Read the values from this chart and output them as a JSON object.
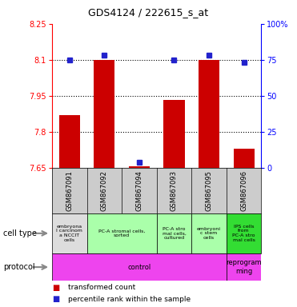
{
  "title": "GDS4124 / 222615_s_at",
  "samples": [
    "GSM867091",
    "GSM867092",
    "GSM867094",
    "GSM867093",
    "GSM867095",
    "GSM867096"
  ],
  "transformed_counts": [
    7.87,
    8.1,
    7.657,
    7.933,
    8.1,
    7.73
  ],
  "percentile_ranks": [
    75,
    78,
    4,
    75,
    78,
    73
  ],
  "ylim_left": [
    7.65,
    8.25
  ],
  "ylim_right": [
    0,
    100
  ],
  "yticks_left": [
    7.65,
    7.8,
    7.95,
    8.1,
    8.25
  ],
  "yticks_right": [
    0,
    25,
    50,
    75,
    100
  ],
  "ytick_labels_left": [
    "7.65",
    "7.8",
    "7.95",
    "8.1",
    "8.25"
  ],
  "ytick_labels_right": [
    "0",
    "25",
    "50",
    "75",
    "100%"
  ],
  "hlines": [
    7.8,
    7.95,
    8.1
  ],
  "bar_color": "#cc0000",
  "dot_color": "#2222cc",
  "sample_bg_color": "#cccccc",
  "cell_types": [
    {
      "label": "embryona\nl carcinom\na NCCIT\ncells",
      "span": [
        0,
        1
      ],
      "color": "#dddddd"
    },
    {
      "label": "PC-A stromal cells,\nsorted",
      "span": [
        1,
        3
      ],
      "color": "#aaffaa"
    },
    {
      "label": "PC-A stro\nmal cells,\ncultured",
      "span": [
        3,
        4
      ],
      "color": "#aaffaa"
    },
    {
      "label": "embryoni\nc stem\ncells",
      "span": [
        4,
        5
      ],
      "color": "#aaffaa"
    },
    {
      "label": "IPS cells\nfrom\nPC-A stro\nmal cells",
      "span": [
        5,
        6
      ],
      "color": "#33dd33"
    }
  ],
  "protocols": [
    {
      "label": "control",
      "span": [
        0,
        5
      ],
      "color": "#ee44ee"
    },
    {
      "label": "reprogram\nming",
      "span": [
        5,
        6
      ],
      "color": "#ee44ee"
    }
  ],
  "legend_red_label": "transformed count",
  "legend_blue_label": "percentile rank within the sample",
  "cell_type_label": "cell type",
  "protocol_label": "protocol",
  "arrow_color": "#888888"
}
